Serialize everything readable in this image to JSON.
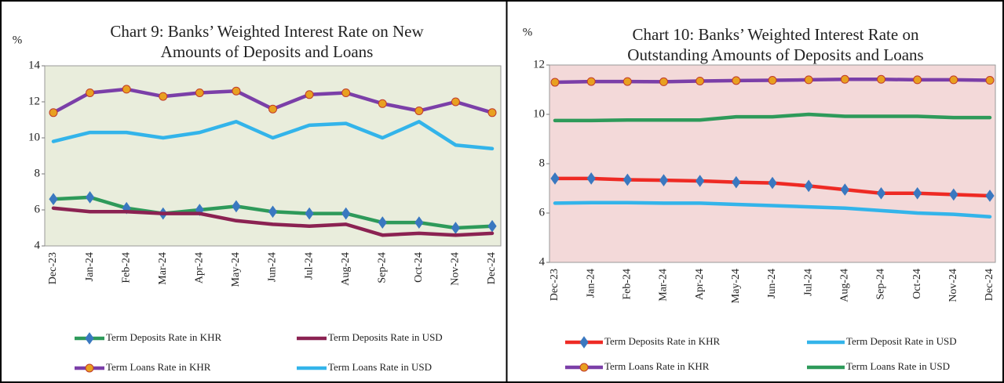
{
  "chart_data": [
    {
      "type": "line",
      "title": [
        "Chart 9: Banks’ Weighted Interest Rate on New",
        "Amounts of Deposits and Loans"
      ],
      "y_label": "%",
      "background": "#e9eddc",
      "categories": [
        "Dec-23",
        "Jan-24",
        "Feb-24",
        "Mar-24",
        "Apr-24",
        "May-24",
        "Jun-24",
        "Jul-24",
        "Aug-24",
        "Sep-24",
        "Oct-24",
        "Nov-24",
        "Dec-24"
      ],
      "ylim": [
        4,
        14
      ],
      "yticks": [
        4,
        6,
        8,
        10,
        12,
        14
      ],
      "series": [
        {
          "name": "Term Deposits Rate in KHR",
          "color": "#2e9a5a",
          "marker": "diamond",
          "marker_color": "#3a78c0",
          "values": [
            6.6,
            6.7,
            6.1,
            5.8,
            6.0,
            6.2,
            5.9,
            5.8,
            5.8,
            5.3,
            5.3,
            5.0,
            5.1
          ]
        },
        {
          "name": "Term Deposits Rate in USD",
          "color": "#8b2252",
          "values": [
            6.1,
            5.9,
            5.9,
            5.8,
            5.8,
            5.4,
            5.2,
            5.1,
            5.2,
            4.6,
            4.7,
            4.6,
            4.7
          ]
        },
        {
          "name": "Term Loans Rate in KHR",
          "color": "#7b3fa8",
          "marker": "circle",
          "marker_color": "#e8a020",
          "values": [
            11.4,
            12.5,
            12.7,
            12.3,
            12.5,
            12.6,
            11.6,
            12.4,
            12.5,
            11.9,
            11.5,
            12.0,
            11.4
          ]
        },
        {
          "name": "Term Loans Rate in USD",
          "color": "#33b4ea",
          "values": [
            9.8,
            10.3,
            10.3,
            10.0,
            10.3,
            10.9,
            10.0,
            10.7,
            10.8,
            10.0,
            10.9,
            9.6,
            9.4
          ]
        }
      ]
    },
    {
      "type": "line",
      "title": [
        "Chart 10: Banks’ Weighted Interest Rate on",
        "Outstanding Amounts of Deposits and Loans"
      ],
      "y_label": "%",
      "background": "#f3d9d9",
      "categories": [
        "Dec-23",
        "Jan-24",
        "Feb-24",
        "Mar-24",
        "Apr-24",
        "May-24",
        "Jun-24",
        "Jul-24",
        "Aug-24",
        "Sep-24",
        "Oct-24",
        "Nov-24",
        "Dec-24"
      ],
      "ylim": [
        4,
        12
      ],
      "yticks": [
        4,
        6,
        8,
        10,
        12
      ],
      "series": [
        {
          "name": "Term Deposits Rate in KHR",
          "color": "#ee2a24",
          "marker": "diamond",
          "marker_color": "#3a78c0",
          "values": [
            7.4,
            7.4,
            7.35,
            7.33,
            7.3,
            7.25,
            7.22,
            7.1,
            6.95,
            6.8,
            6.8,
            6.75,
            6.7
          ]
        },
        {
          "name": "Term Deposit Rate in USD",
          "color": "#33b4ea",
          "values": [
            6.4,
            6.42,
            6.42,
            6.4,
            6.4,
            6.35,
            6.3,
            6.25,
            6.2,
            6.1,
            6.0,
            5.95,
            5.85
          ]
        },
        {
          "name": "Term Loans Rate in KHR",
          "color": "#7b3fa8",
          "marker": "circle",
          "marker_color": "#e8a020",
          "values": [
            11.3,
            11.33,
            11.33,
            11.32,
            11.35,
            11.37,
            11.38,
            11.4,
            11.42,
            11.42,
            11.4,
            11.4,
            11.38
          ]
        },
        {
          "name": "Term Loans Rate in USD",
          "color": "#2e9a5a",
          "values": [
            9.75,
            9.75,
            9.77,
            9.77,
            9.77,
            9.9,
            9.9,
            10.0,
            9.92,
            9.92,
            9.92,
            9.87,
            9.87
          ]
        }
      ]
    }
  ]
}
